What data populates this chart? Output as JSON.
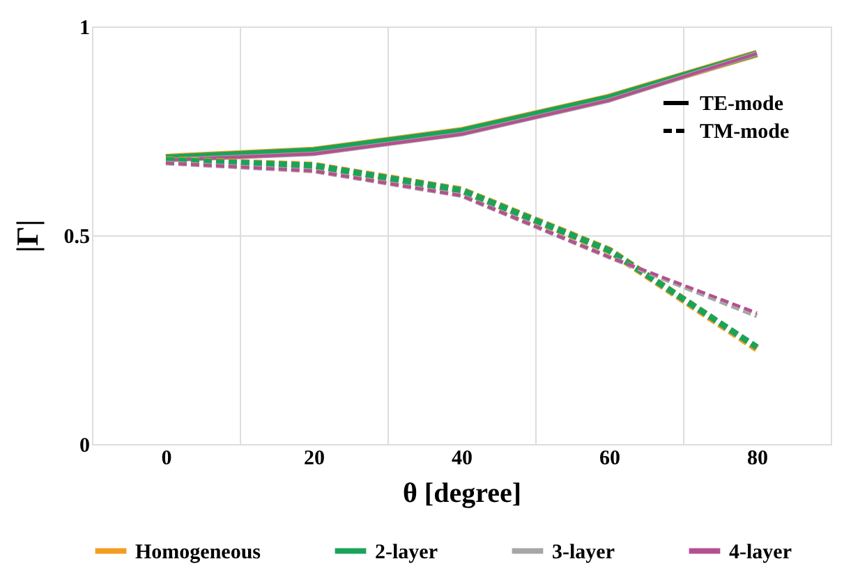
{
  "chart_data": {
    "type": "line",
    "xlabel": "θ [degree]",
    "ylabel": "|Γ|",
    "x": [
      0,
      20,
      40,
      60,
      80
    ],
    "xlim": [
      -10,
      90
    ],
    "xticks": [
      {
        "value": -10,
        "label": null
      },
      0,
      {
        "value": 10,
        "label": null
      },
      20,
      {
        "value": 30,
        "label": null
      },
      40,
      {
        "value": 50,
        "label": null
      },
      60,
      {
        "value": 70,
        "label": null
      },
      80,
      {
        "value": 90,
        "label": null
      }
    ],
    "ylim": [
      0,
      1
    ],
    "yticks": [
      0,
      0.5,
      1
    ],
    "grid": true,
    "legend": "bottom",
    "annotations": [
      "TE-mode",
      "TM-mode"
    ],
    "series": [
      {
        "name": "Homogeneous",
        "color": "#f39c1f",
        "line_style": "solid",
        "values": [
          0.686,
          0.703,
          0.75,
          0.83,
          0.935
        ]
      },
      {
        "name": "2-layer",
        "color": "#1aa35a",
        "line_style": "solid",
        "values": [
          0.686,
          0.703,
          0.75,
          0.83,
          0.935
        ]
      },
      {
        "name": "3-layer",
        "color": "#a6a6a6",
        "line_style": "solid",
        "values": [
          0.68,
          0.695,
          0.742,
          0.823,
          0.935
        ]
      },
      {
        "name": "4-layer",
        "color": "#b5508f",
        "line_style": "solid",
        "values": [
          0.68,
          0.695,
          0.742,
          0.823,
          0.935
        ]
      },
      {
        "color": "#f39c1f",
        "line_style": "dashed",
        "values": [
          0.68,
          0.667,
          0.608,
          0.464,
          0.229
        ]
      },
      {
        "color": "#1aa35a",
        "line_style": "dashed",
        "values": [
          0.68,
          0.667,
          0.608,
          0.464,
          0.232
        ]
      },
      {
        "color": "#a6a6a6",
        "line_style": "dashed",
        "values": [
          0.673,
          0.654,
          0.595,
          0.448,
          0.307
        ]
      },
      {
        "color": "#b5508f",
        "line_style": "dashed",
        "values": [
          0.673,
          0.654,
          0.595,
          0.448,
          0.314
        ]
      }
    ]
  }
}
